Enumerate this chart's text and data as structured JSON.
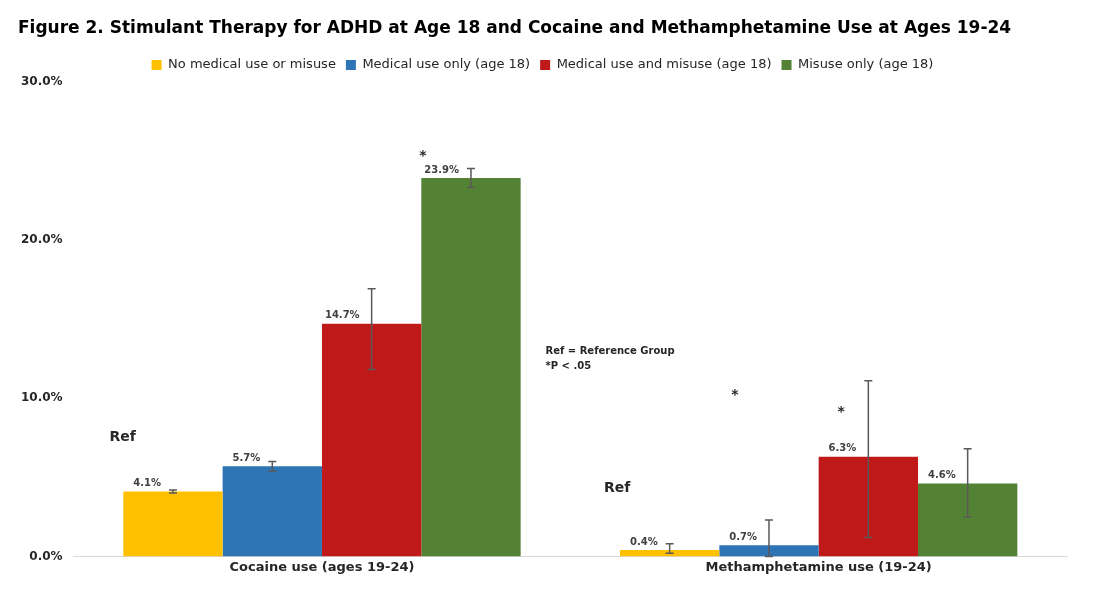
{
  "chart_data": {
    "type": "bar",
    "title": "Figure 2. Stimulant Therapy for ADHD at Age 18 and Cocaine and Methamphetamine Use at Ages 19-24",
    "categories": [
      "Cocaine use (ages 19-24)",
      "Methamphetamine use (19-24)"
    ],
    "series": [
      {
        "name": "No medical use or misuse",
        "color": "#ffc000",
        "values": [
          4.1,
          0.4
        ],
        "errors": [
          [
            4.0,
            4.2
          ],
          [
            0.2,
            0.8
          ]
        ],
        "value_labels": [
          "4.1%",
          "0.4%"
        ]
      },
      {
        "name": "Medical use only (age 18)",
        "color": "#2e75b6",
        "values": [
          5.7,
          0.7
        ],
        "errors": [
          [
            5.4,
            6.0
          ],
          [
            0.0,
            2.3
          ]
        ],
        "value_labels": [
          "5.7%",
          "0.7%"
        ]
      },
      {
        "name": "Medical use and misuse (age 18)",
        "color": "#c0191a",
        "values": [
          14.7,
          6.3
        ],
        "errors": [
          [
            11.8,
            16.9
          ],
          [
            1.2,
            11.1
          ]
        ],
        "value_labels": [
          "14.7%",
          "6.3%"
        ]
      },
      {
        "name": "Misuse only (age 18)",
        "color": "#548235",
        "values": [
          23.9,
          4.6
        ],
        "errors": [
          [
            23.3,
            24.5
          ],
          [
            2.5,
            6.8
          ]
        ],
        "value_labels": [
          "23.9%",
          "4.6%"
        ]
      }
    ],
    "ylim": [
      0,
      30
    ],
    "yticks": [
      {
        "value": 0,
        "label": "0.0%"
      },
      {
        "value": 10,
        "label": "10.0%"
      },
      {
        "value": 20,
        "label": "20.0%"
      },
      {
        "value": 30,
        "label": "30.0%"
      }
    ],
    "grid": false,
    "legend": "top",
    "annotations": [
      "Ref",
      "*",
      "Ref",
      "*",
      "*",
      "Ref = Reference Group",
      "*P < .05"
    ]
  }
}
